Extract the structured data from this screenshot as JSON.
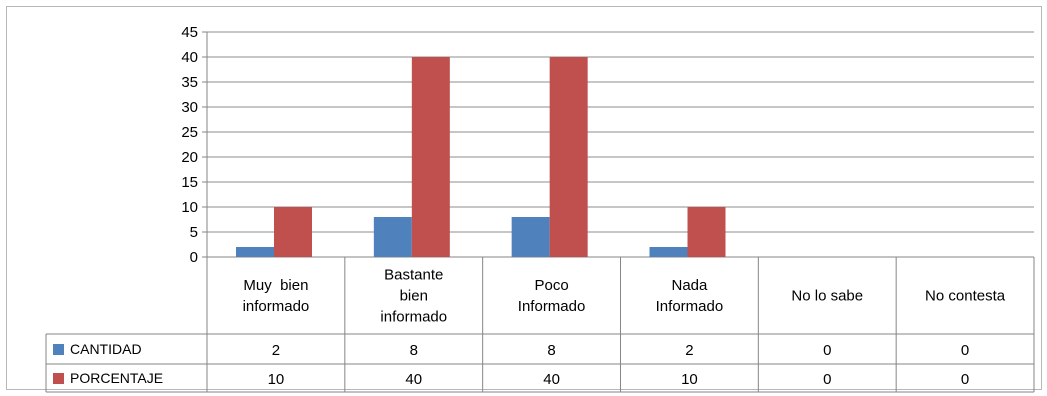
{
  "chart_data": {
    "type": "bar",
    "title": "",
    "xlabel": "",
    "ylabel": "",
    "ylim": [
      0,
      45
    ],
    "yticks": [
      "0",
      "5",
      "10",
      "15",
      "20",
      "25",
      "30",
      "35",
      "40",
      "45"
    ],
    "grid": true,
    "legend": "data-table-left",
    "categories": [
      [
        "Muy  bien",
        "informado"
      ],
      [
        "Bastante",
        "bien",
        "informado"
      ],
      [
        "Poco",
        "Informado"
      ],
      [
        "Nada",
        "Informado"
      ],
      [
        "No lo sabe"
      ],
      [
        "No contesta"
      ]
    ],
    "series": [
      {
        "name": "CANTIDAD",
        "color": "#4f81bd",
        "values": [
          2,
          8,
          8,
          2,
          0,
          0
        ]
      },
      {
        "name": "PORCENTAJE",
        "color": "#c0504d",
        "values": [
          10,
          40,
          40,
          10,
          0,
          0
        ]
      }
    ]
  }
}
